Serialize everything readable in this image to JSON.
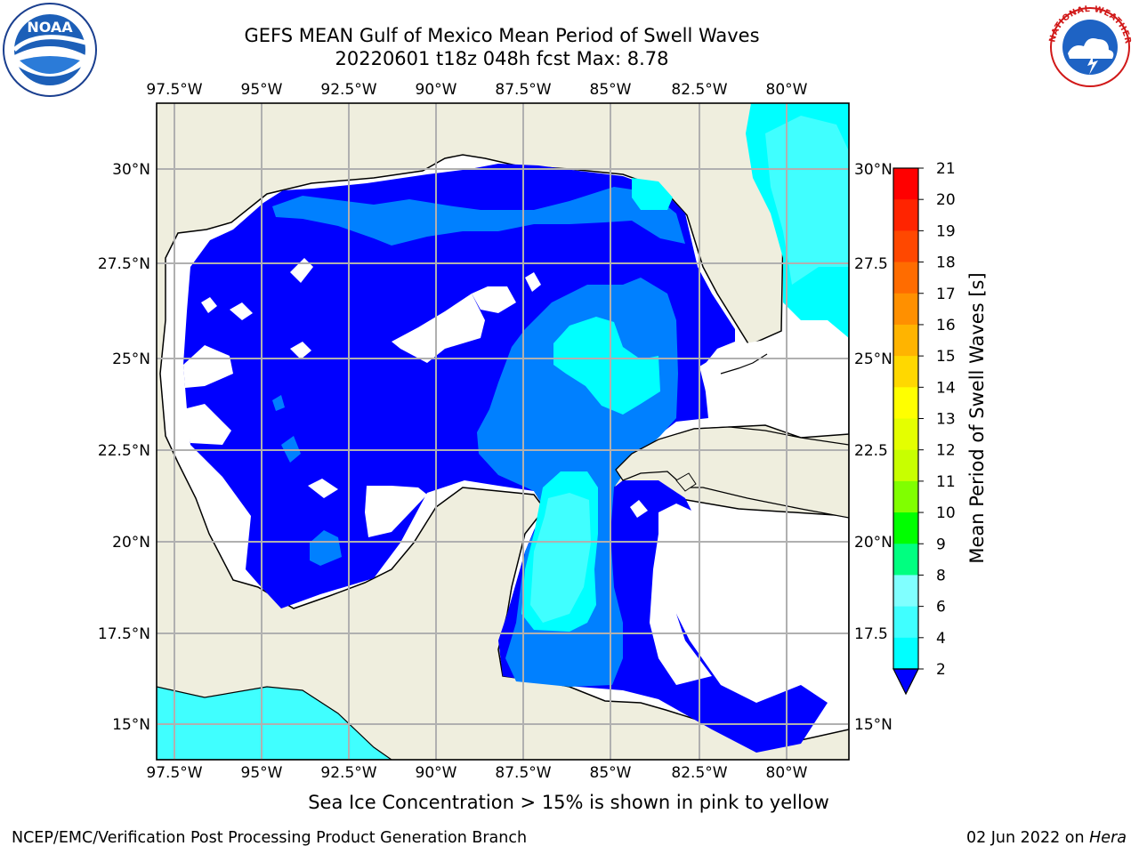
{
  "header": {
    "title_line1": "GEFS MEAN Gulf of Mexico Mean Period of Swell Waves",
    "title_line2": "20220601 t18z 048h fcst   Max: 8.78"
  },
  "logos": {
    "left": {
      "name": "noaa-logo",
      "text": "NOAA"
    },
    "right": {
      "name": "nws-logo",
      "ring_text": "NATIONAL WEATHER SERVICE"
    }
  },
  "map": {
    "lon_labels_top": [
      "97.5°W",
      "95°W",
      "92.5°W",
      "90°W",
      "87.5°W",
      "85°W",
      "82.5°W",
      "80°W"
    ],
    "lon_labels_bottom": [
      "97.5°W",
      "95°W",
      "92.5°W",
      "90°W",
      "87.5°W",
      "85°W",
      "82.5°W",
      "80°W"
    ],
    "lat_labels_left": [
      "30°N",
      "27.5°N",
      "25°N",
      "22.5°N",
      "20°N",
      "17.5°N",
      "15°N"
    ],
    "lat_labels_right": [
      "30°N",
      "27.5",
      "25°N",
      "22.5",
      "20°N",
      "17.5",
      "15°N"
    ],
    "colors": {
      "land": "#efeede",
      "band_2_4": "#0000ff",
      "band_4_6": "#0080ff",
      "band_6_8": "#00ffff",
      "band_8_9": "#40ffff",
      "grid": "#b0b0b0"
    }
  },
  "colorbar": {
    "title": "Mean Period of Swell Waves [s]",
    "ticks": [
      "21",
      "20",
      "19",
      "18",
      "17",
      "16",
      "15",
      "14",
      "13",
      "12",
      "11",
      "10",
      "9",
      "8",
      "6",
      "4",
      "2"
    ],
    "colors": [
      "#ff0000",
      "#ff2400",
      "#ff4800",
      "#ff6c00",
      "#ff9000",
      "#ffb400",
      "#ffd800",
      "#ffff00",
      "#e4ff00",
      "#c8ff00",
      "#80ff00",
      "#00ff00",
      "#00ff80",
      "#80ffff",
      "#40ffff",
      "#00ffff",
      "#0080ff",
      "#0000ff"
    ]
  },
  "footer": {
    "note": "Sea Ice Concentration > 15% is shown in pink to yellow",
    "credit_left": "NCEP/EMC/Verification Post Processing Product Generation Branch",
    "credit_date": "02 Jun 2022 on ",
    "credit_host": "Hera"
  }
}
